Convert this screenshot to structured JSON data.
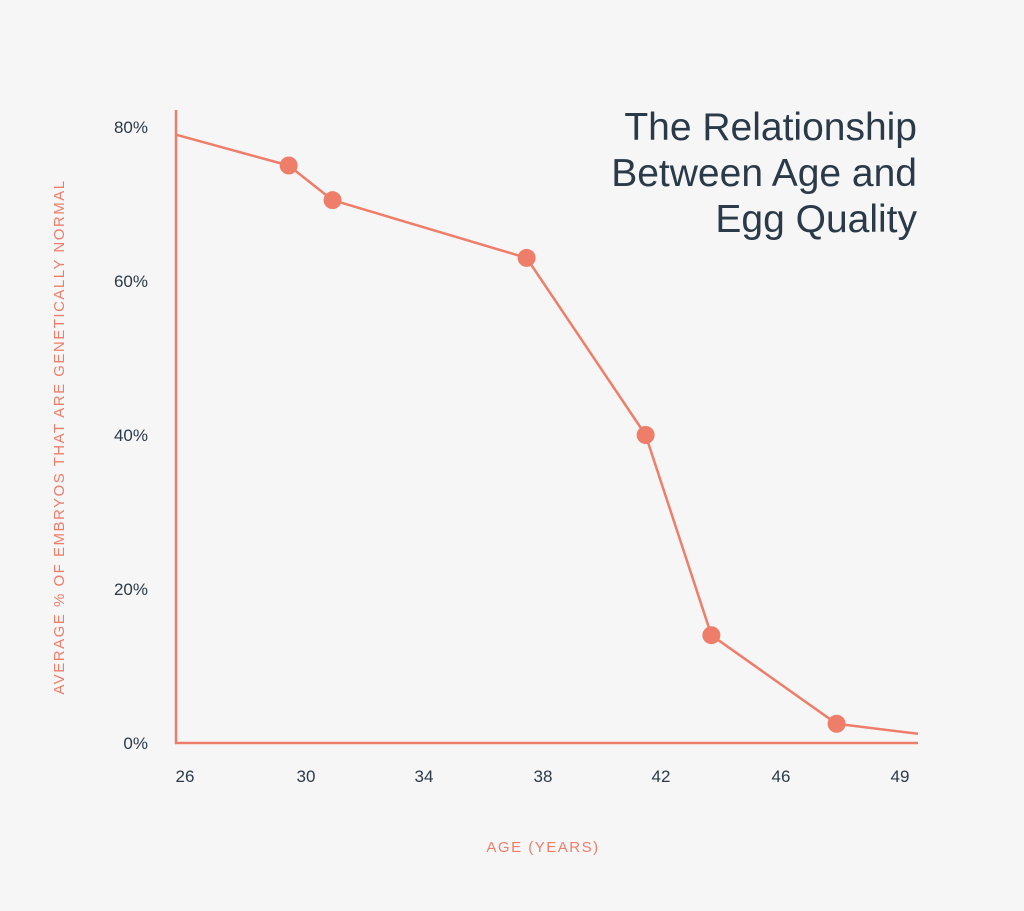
{
  "colors": {
    "accent": "#ee7e6a",
    "text": "#2b3a48",
    "background": "#f6f6f6"
  },
  "chart_data": {
    "type": "line",
    "title_lines": [
      "The Relationship",
      "Between Age and",
      "Egg Quality"
    ],
    "xlabel": "AGE (YEARS)",
    "ylabel": "AVERAGE % OF EMBRYOS THAT ARE GENETICALLY NORMAL",
    "x_ticks": [
      26,
      30,
      34,
      38,
      42,
      46,
      49
    ],
    "y_ticks": [
      0,
      20,
      40,
      60,
      80
    ],
    "y_tick_labels": [
      "0%",
      "20%",
      "40%",
      "60%",
      "80%"
    ],
    "xlim": [
      25.6,
      49.3
    ],
    "ylim": [
      0,
      80
    ],
    "grid": false,
    "series": [
      {
        "line": [
          {
            "x": 25.6,
            "y": 79
          },
          {
            "x": 29.2,
            "y": 75
          },
          {
            "x": 30.6,
            "y": 70.5
          },
          {
            "x": 36.8,
            "y": 63
          },
          {
            "x": 40.6,
            "y": 40
          },
          {
            "x": 42.7,
            "y": 14
          },
          {
            "x": 46.7,
            "y": 2.5
          },
          {
            "x": 49.3,
            "y": 1.2
          }
        ],
        "points": [
          {
            "x": 29.2,
            "y": 75
          },
          {
            "x": 30.6,
            "y": 70.5
          },
          {
            "x": 36.8,
            "y": 63
          },
          {
            "x": 40.6,
            "y": 40
          },
          {
            "x": 42.7,
            "y": 14
          },
          {
            "x": 46.7,
            "y": 2.5
          }
        ]
      }
    ]
  }
}
